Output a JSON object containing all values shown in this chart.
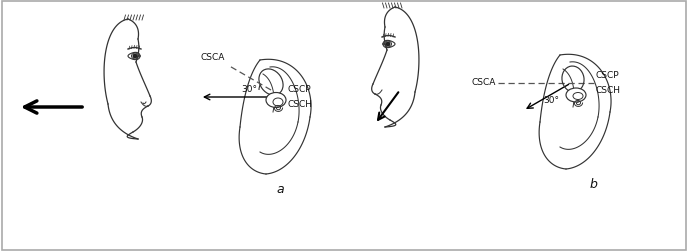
{
  "bg_color": "#ffffff",
  "border_color": "#aaaaaa",
  "text_color": "#111111",
  "label_a": "a",
  "label_b": "b",
  "label_csca_a": "CSCA",
  "label_cscp_a": "CSCP",
  "label_csch_a": "CSCH",
  "label_csca_b": "CSCA",
  "label_cscp_b": "CSCP",
  "label_csch_b": "CSCH",
  "label_30_a": "30°",
  "label_30_b": "30°",
  "fontsize_labels": 6.5,
  "fontsize_ab": 9,
  "fig_width": 6.88,
  "fig_height": 2.53,
  "face_line_color": "#333333",
  "ear_line_color": "#333333"
}
